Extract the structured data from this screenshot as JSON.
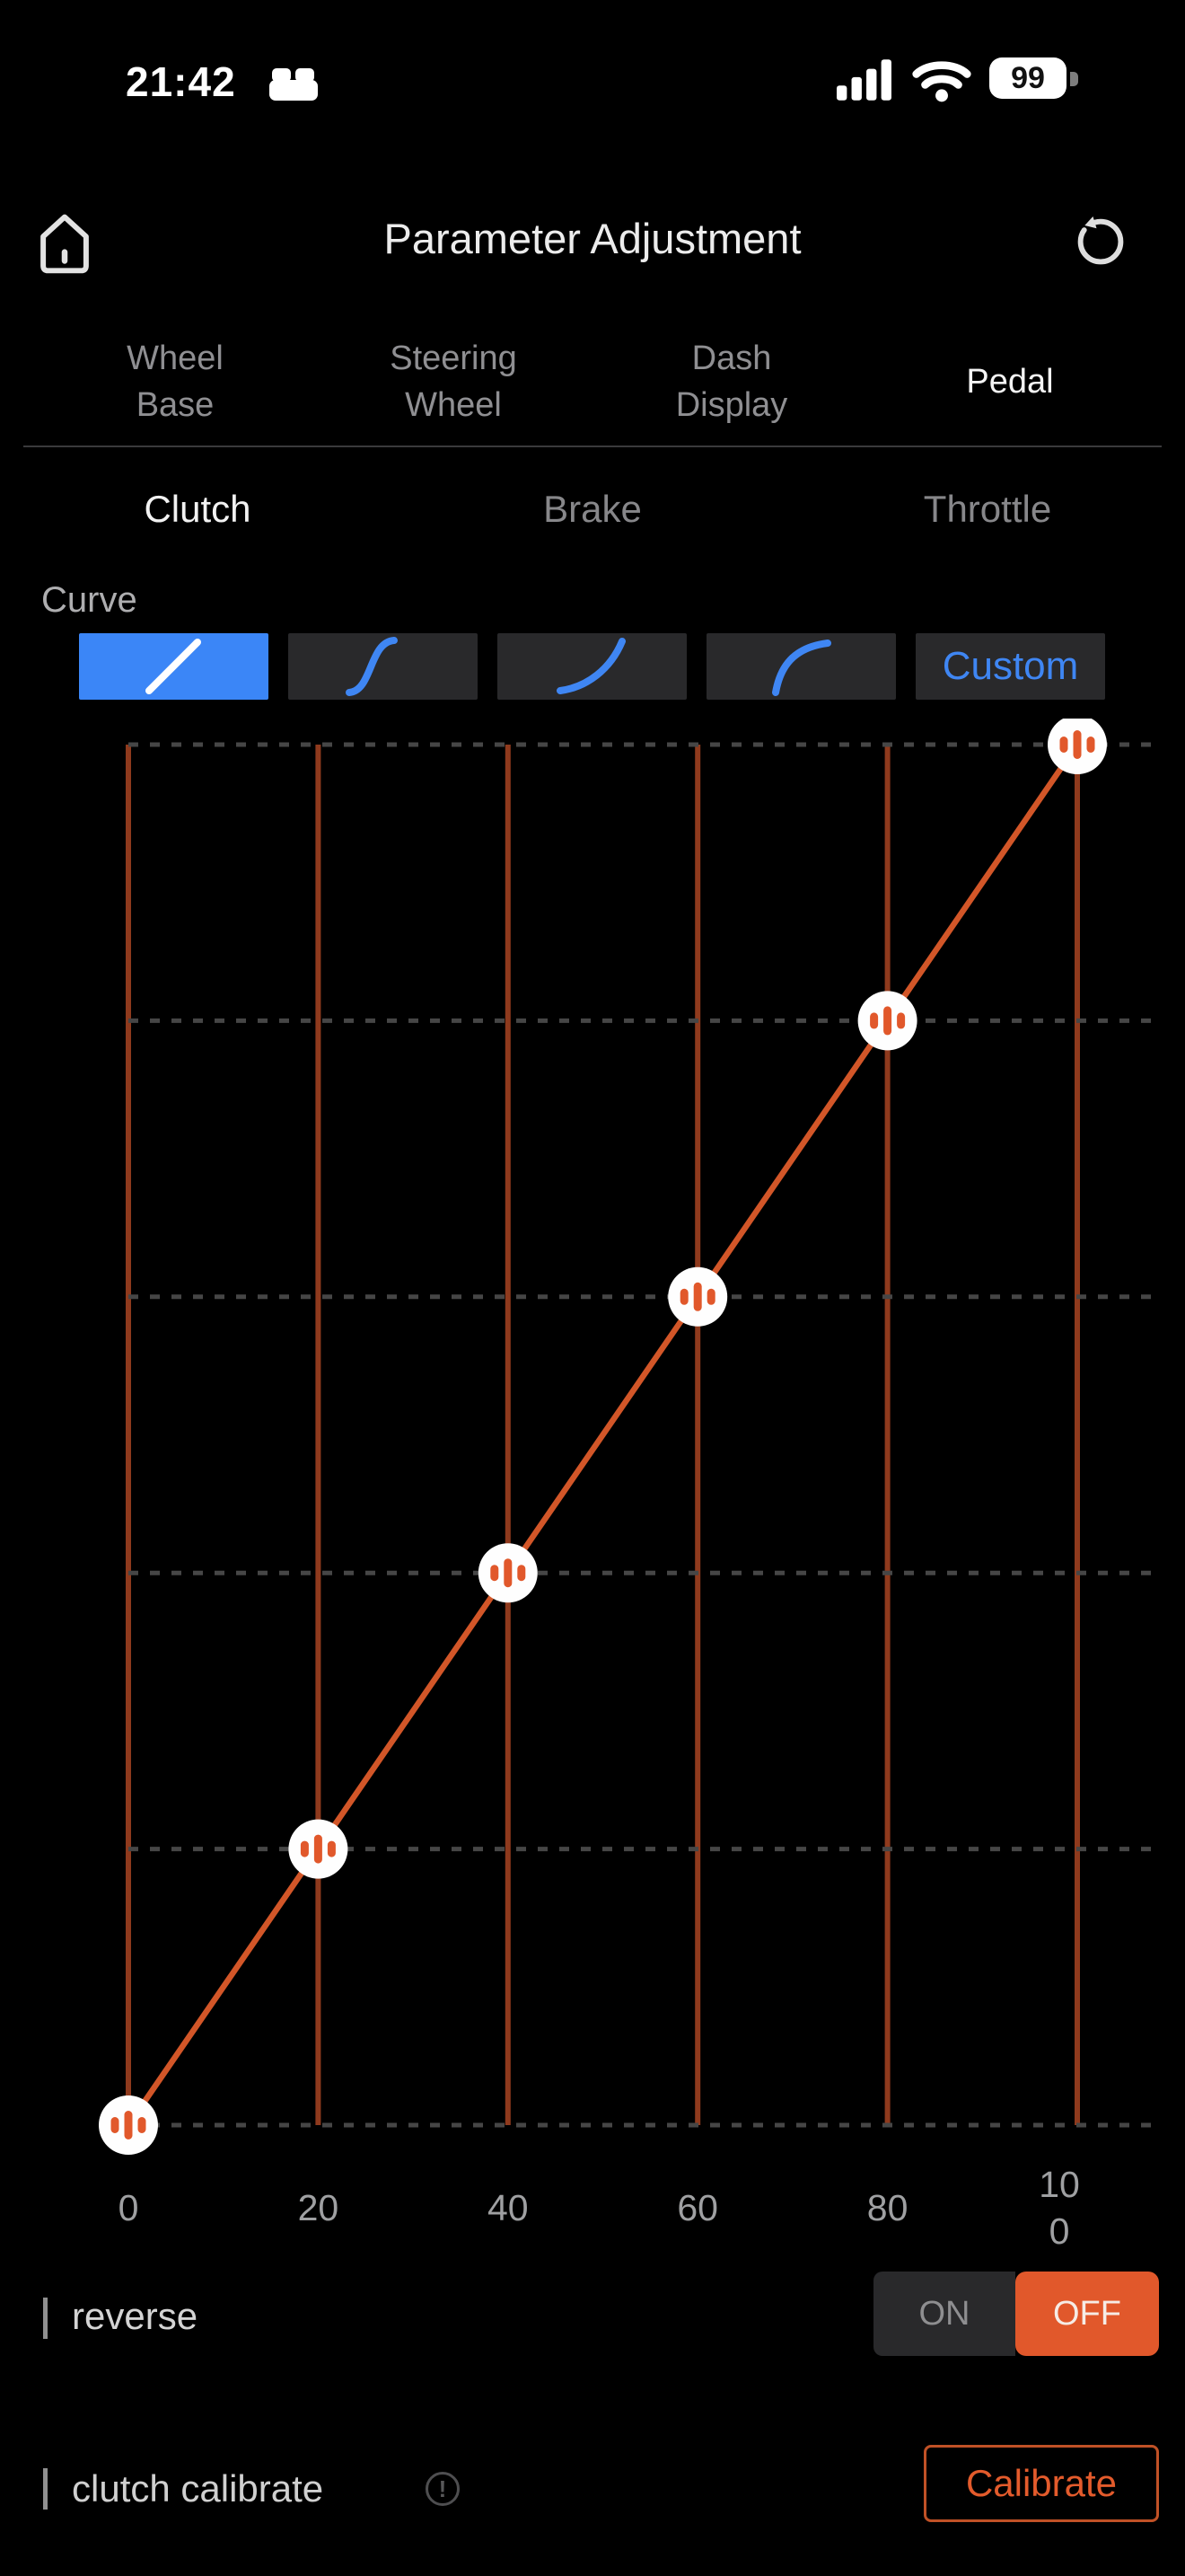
{
  "status_bar": {
    "time": "21:42",
    "battery_percent": "99",
    "icons": [
      "bed-icon",
      "cellular-signal-icon",
      "wifi-icon",
      "battery-icon"
    ]
  },
  "header": {
    "title": "Parameter Adjustment",
    "left_icon": "home-icon",
    "right_icon": "reset-icon"
  },
  "tabs": [
    {
      "label": "Wheel Base",
      "lines": [
        "Wheel",
        "Base"
      ],
      "active": false
    },
    {
      "label": "Steering Wheel",
      "lines": [
        "Steering",
        "Wheel"
      ],
      "active": false
    },
    {
      "label": "Dash Display",
      "lines": [
        "Dash",
        "Display"
      ],
      "active": false
    },
    {
      "label": "Pedal",
      "lines": [
        "Pedal"
      ],
      "active": true
    }
  ],
  "sub_tabs": [
    {
      "label": "Clutch",
      "active": true
    },
    {
      "label": "Brake",
      "active": false
    },
    {
      "label": "Throttle",
      "active": false
    }
  ],
  "curve_section": {
    "label": "Curve",
    "presets": [
      {
        "id": "linear",
        "icon": "linear-curve-icon",
        "selected": true
      },
      {
        "id": "s-curve",
        "icon": "s-curve-icon",
        "selected": false
      },
      {
        "id": "ease-in",
        "icon": "ease-in-curve-icon",
        "selected": false
      },
      {
        "id": "ease-out",
        "icon": "ease-out-curve-icon",
        "selected": false
      },
      {
        "id": "custom",
        "label": "Custom",
        "selected": false
      }
    ]
  },
  "chart_data": {
    "type": "line",
    "title": "",
    "xlabel": "",
    "ylabel": "",
    "xlim": [
      0,
      100
    ],
    "ylim": [
      0,
      100
    ],
    "x": [
      0,
      20,
      40,
      60,
      80,
      100
    ],
    "y": [
      0,
      20,
      40,
      60,
      80,
      100
    ],
    "points": [
      [
        0,
        0
      ],
      [
        20,
        20
      ],
      [
        40,
        40
      ],
      [
        60,
        60
      ],
      [
        80,
        80
      ],
      [
        100,
        100
      ]
    ],
    "x_tick_labels": [
      "0",
      "20",
      "40",
      "60",
      "80",
      "100"
    ],
    "grid": {
      "vertical_ticks": [
        0,
        20,
        40,
        60,
        80,
        100
      ],
      "horizontal_ticks": [
        0,
        20,
        40,
        60,
        80,
        100
      ],
      "vertical_style": "solid",
      "horizontal_style": "dashed"
    },
    "series": [
      {
        "name": "clutch-response-curve",
        "points": [
          [
            0,
            0
          ],
          [
            20,
            20
          ],
          [
            40,
            40
          ],
          [
            60,
            60
          ],
          [
            80,
            80
          ],
          [
            100,
            100
          ]
        ]
      }
    ],
    "legend": null
  },
  "reverse_row": {
    "label": "reverse",
    "options": [
      {
        "label": "ON",
        "selected": false
      },
      {
        "label": "OFF",
        "selected": true
      }
    ]
  },
  "calibrate_row": {
    "label": "clutch calibrate",
    "info_glyph": "!",
    "button_label": "Calibrate"
  },
  "colors": {
    "background": "#000000",
    "accent_blue": "#3b86f7",
    "preset_curve_blue": "#3f86f3",
    "accent_orange": "#e1582b",
    "curve_line": "#d25628",
    "grid_vertical": "#8f3a1d",
    "grid_dashed": "#464646",
    "handle_fill": "#fefefe",
    "handle_icon": "#e1582b",
    "inactive_text": "#8f8f92",
    "active_text": "#f4f4f4",
    "axis_label": "#9fa0a2"
  }
}
